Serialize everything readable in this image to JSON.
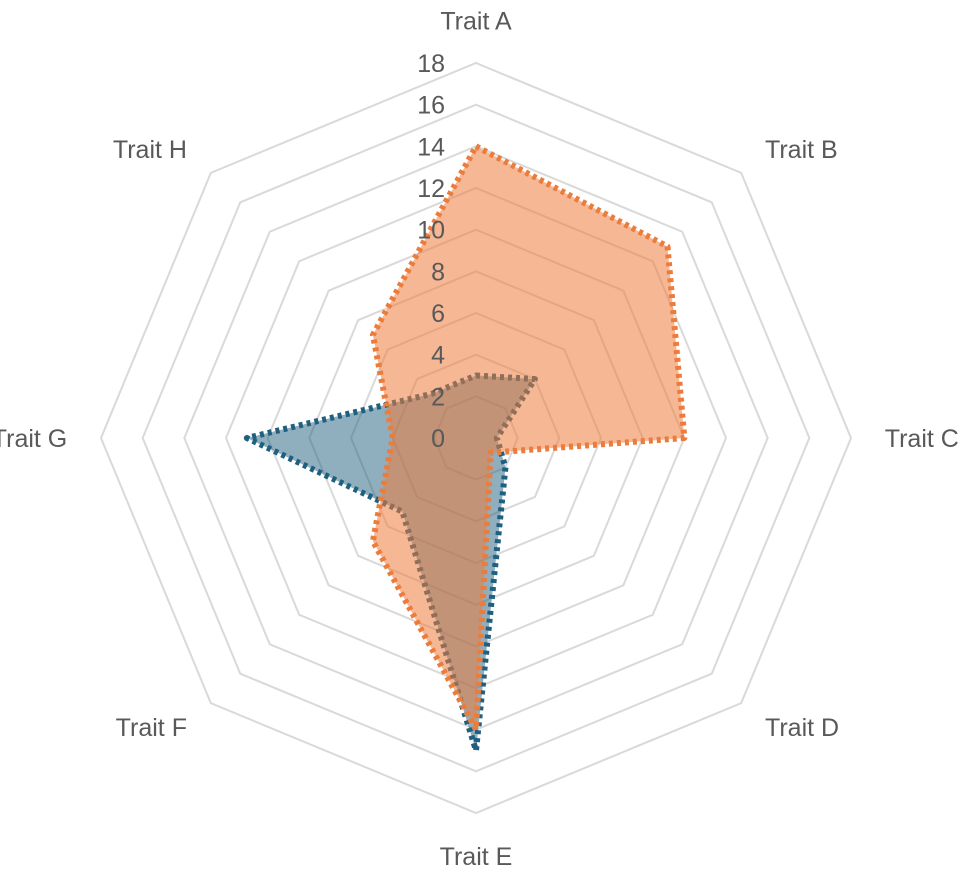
{
  "chart_data": {
    "type": "radar",
    "categories": [
      "Trait A",
      "Trait B",
      "Trait C",
      "Trait D",
      "Trait E",
      "Trait F",
      "Trait G",
      "Trait H"
    ],
    "radial_ticks": [
      "0",
      "2",
      "4",
      "6",
      "8",
      "10",
      "12",
      "14",
      "16",
      "18"
    ],
    "rlim": [
      0,
      18
    ],
    "grid": true,
    "legend": "none",
    "series": [
      {
        "values": [
          3,
          4,
          1,
          2,
          15,
          5,
          11,
          3
        ],
        "fill": "#1f5f7f",
        "fill_opacity": 0.5,
        "stroke": "#1f5f7f",
        "line_style": "dotted"
      },
      {
        "values": [
          14,
          13,
          10,
          1,
          14,
          7,
          4,
          7
        ],
        "fill": "#ec7c3c",
        "fill_opacity": 0.55,
        "stroke": "#ec7c3c",
        "line_style": "dotted"
      }
    ],
    "colors": {
      "grid": "#d9d9d9",
      "text": "#595959"
    }
  }
}
